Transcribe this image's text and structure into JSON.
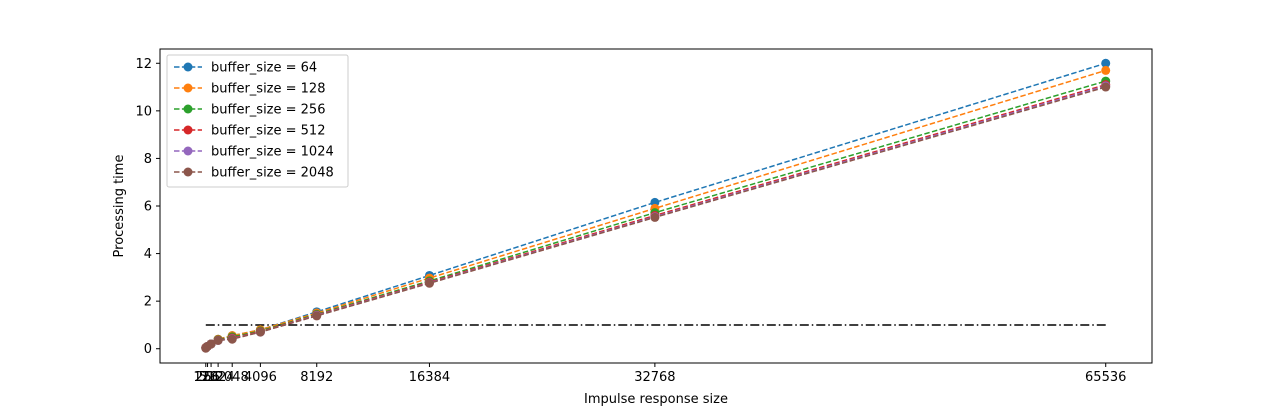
{
  "chart_data": {
    "type": "line",
    "title": "",
    "xlabel": "Impulse response size",
    "ylabel": "Processing time",
    "xlim": [
      -3200,
      68900
    ],
    "ylim": [
      -0.6,
      12.6
    ],
    "x": [
      128,
      256,
      512,
      1024,
      2048,
      4096,
      8192,
      16384,
      32768,
      65536
    ],
    "xticks": [
      128,
      256,
      512,
      1024,
      2048,
      4096,
      8192,
      16384,
      32768,
      65536
    ],
    "xtick_labels": [
      "128",
      "256",
      "512",
      "1024",
      "2048",
      "4096",
      "8192",
      "16384",
      "32768",
      "65536"
    ],
    "yticks": [
      0,
      2,
      4,
      6,
      8,
      10,
      12
    ],
    "ytick_labels": [
      "0",
      "2",
      "4",
      "6",
      "8",
      "10",
      "12"
    ],
    "grid": false,
    "legend_position": "top-left",
    "series": [
      {
        "name": "buffer_size = 64",
        "color": "#1f77b4",
        "values": [
          0.05,
          0.1,
          0.2,
          0.4,
          0.55,
          0.8,
          1.55,
          3.08,
          6.15,
          12.0
        ]
      },
      {
        "name": "buffer_size = 128",
        "color": "#ff7f0e",
        "values": [
          0.05,
          0.1,
          0.2,
          0.4,
          0.55,
          0.8,
          1.5,
          2.97,
          5.9,
          11.7
        ]
      },
      {
        "name": "buffer_size = 256",
        "color": "#2ca02c",
        "values": [
          0.04,
          0.1,
          0.2,
          0.38,
          0.5,
          0.75,
          1.45,
          2.85,
          5.72,
          11.25
        ]
      },
      {
        "name": "buffer_size = 512",
        "color": "#d62728",
        "values": [
          0.04,
          0.1,
          0.2,
          0.36,
          0.45,
          0.72,
          1.42,
          2.8,
          5.6,
          11.1
        ]
      },
      {
        "name": "buffer_size = 1024",
        "color": "#9467bd",
        "values": [
          0.03,
          0.1,
          0.2,
          0.35,
          0.42,
          0.7,
          1.4,
          2.77,
          5.55,
          11.05
        ]
      },
      {
        "name": "buffer_size = 2048",
        "color": "#8c564b",
        "values": [
          0.02,
          0.1,
          0.2,
          0.35,
          0.4,
          0.7,
          1.38,
          2.75,
          5.52,
          11.0
        ]
      }
    ],
    "reference_line": {
      "y": 1,
      "x_start": 128,
      "x_end": 65536,
      "color": "#000000",
      "style": "dash-dot"
    }
  }
}
